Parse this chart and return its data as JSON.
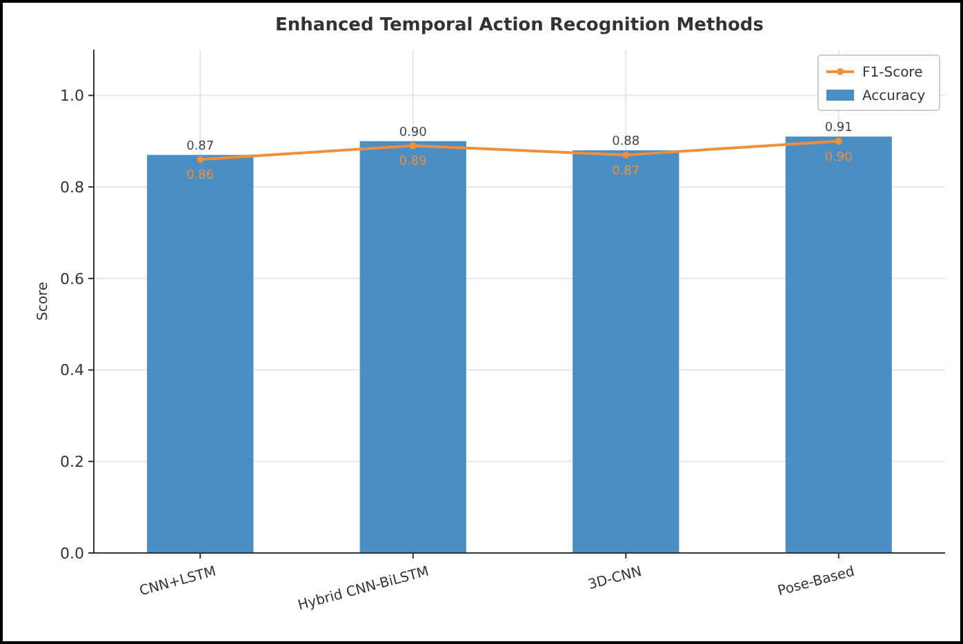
{
  "chart_data": {
    "type": "bar",
    "title": "Enhanced Temporal Action Recognition Methods",
    "ylabel": "Score",
    "categories": [
      "CNN+LSTM",
      "Hybrid CNN-BiLSTM",
      "3D-CNN",
      "Pose-Based"
    ],
    "series": [
      {
        "name": "Accuracy",
        "color": "#4a8ec6",
        "values": [
          0.87,
          0.9,
          0.88,
          0.91
        ],
        "value_labels": [
          "0.87",
          "0.90",
          "0.88",
          "0.91"
        ]
      },
      {
        "name": "F1-Score",
        "type": "line",
        "color": "#f0903a",
        "values": [
          0.86,
          0.89,
          0.87,
          0.9
        ],
        "value_labels": [
          "0.86",
          "0.89",
          "0.87",
          "0.90"
        ],
        "marker": "circle"
      }
    ],
    "ylim": [
      0,
      1.1
    ],
    "yticks": [
      {
        "value": 0,
        "label": "0.0"
      },
      0.2,
      0.4,
      0.6,
      0.8,
      {
        "value": 1,
        "label": "1.0"
      }
    ],
    "grid": true,
    "legend": "top right"
  }
}
